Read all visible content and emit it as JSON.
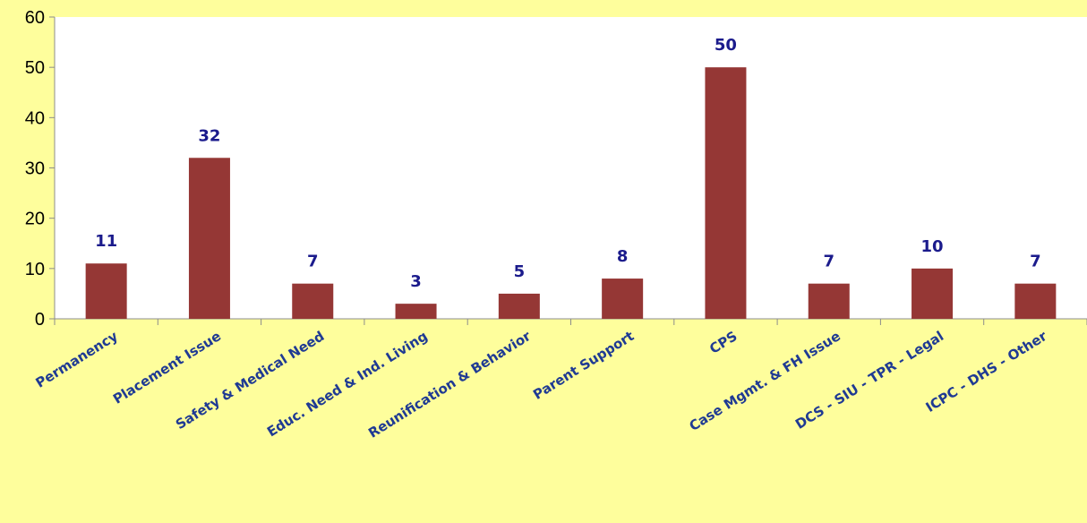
{
  "chart_data": {
    "type": "bar",
    "title": "",
    "xlabel": "",
    "ylabel": "",
    "categories": [
      "Permanency",
      "Placement Issue",
      "Safety & Medical Need",
      "Educ. Need & Ind. Living",
      "Reunification & Behavior",
      "Parent Support",
      "CPS",
      "Case Mgmt. & FH Issue",
      "DCS - SIU - TPR - Legal",
      "ICPC - DHS - Other"
    ],
    "values": [
      11,
      32,
      7,
      3,
      5,
      8,
      50,
      7,
      10,
      7
    ],
    "ylim": [
      0,
      60
    ],
    "yticks": [
      0,
      10,
      20,
      30,
      40,
      50,
      60
    ],
    "grid": false,
    "data_labels": true,
    "colors": {
      "bar": "#953735",
      "background": "#fefe9c",
      "plot_background": "#ffffff",
      "axis": "#8c8c8c",
      "data_label": "#1b1b8c",
      "category_label": "#1f3a93"
    }
  }
}
